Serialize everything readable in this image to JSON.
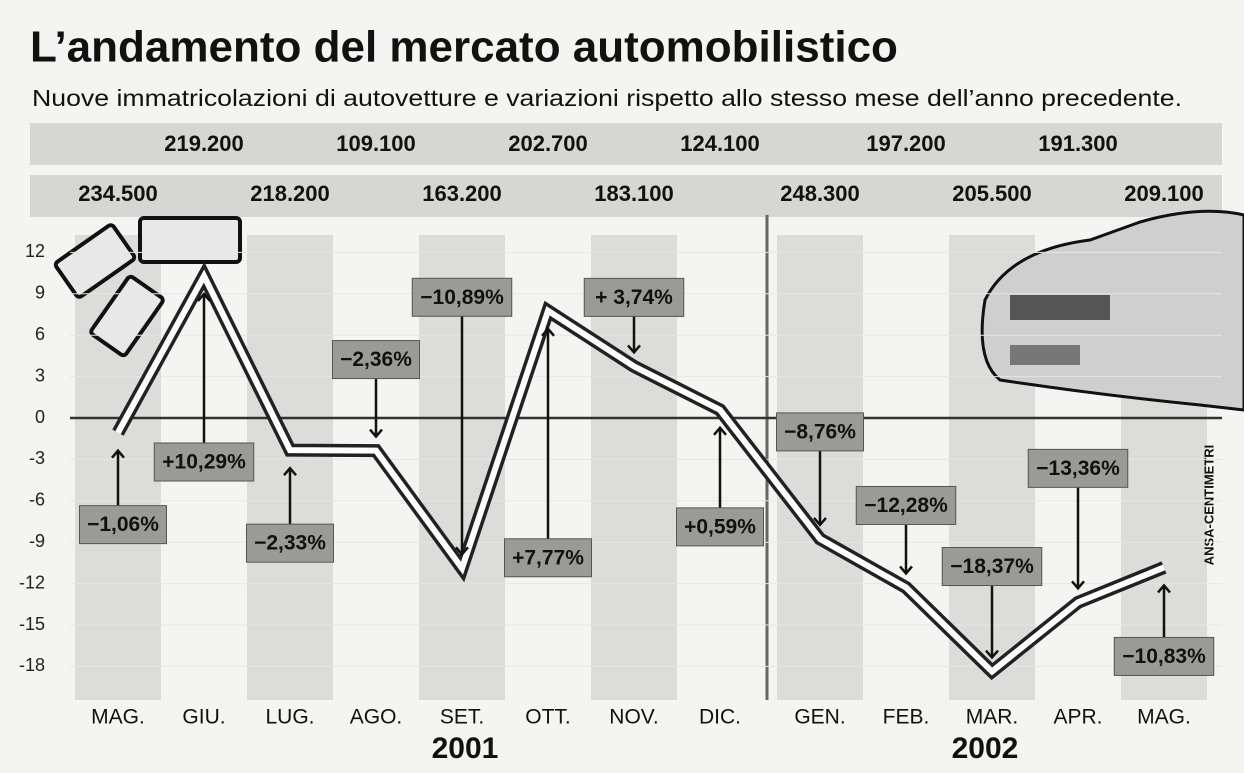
{
  "chart_data": {
    "type": "line",
    "title": "L’andamento del mercato automobilistico",
    "subtitle": "Nuove immatricolazioni di autovetture e variazioni rispetto allo stesso mese dell’anno precedente.",
    "categories": [
      "MAG.",
      "GIU.",
      "LUG.",
      "AGO.",
      "SET.",
      "OTT.",
      "NOV.",
      "DIC.",
      "GEN.",
      "FEB.",
      "MAR.",
      "APR.",
      "MAG."
    ],
    "years": [
      "2001",
      "2002"
    ],
    "values": [
      -1.06,
      10.29,
      -2.33,
      -2.36,
      -10.89,
      7.77,
      3.74,
      0.59,
      -8.76,
      -12.28,
      -18.37,
      -13.36,
      -10.83
    ],
    "value_labels": [
      "−1,06%",
      "+10,29%",
      "−2,33%",
      "−2,36%",
      "−10,89%",
      "+7,77%",
      "+ 3,74%",
      "+0,59%",
      "−8,76%",
      "−12,28%",
      "−18,37%",
      "−13,36%",
      "−10,83%"
    ],
    "registrations": {
      "values": [
        234500,
        219200,
        218200,
        109100,
        163200,
        202700,
        183100,
        124100,
        248300,
        197200,
        205500,
        191300,
        209100
      ],
      "value_labels": [
        "234.500",
        "219.200",
        "218.200",
        "109.100",
        "163.200",
        "202.700",
        "183.100",
        "124.100",
        "248.300",
        "197.200",
        "205.500",
        "191.300",
        "209.100"
      ]
    },
    "ylim": [
      -20,
      13
    ],
    "yticks": [
      12,
      9,
      6,
      3,
      0,
      -3,
      -6,
      -9,
      -12,
      -15,
      -18
    ],
    "grid": true,
    "source": "ANSA-CENTIMETRI"
  }
}
